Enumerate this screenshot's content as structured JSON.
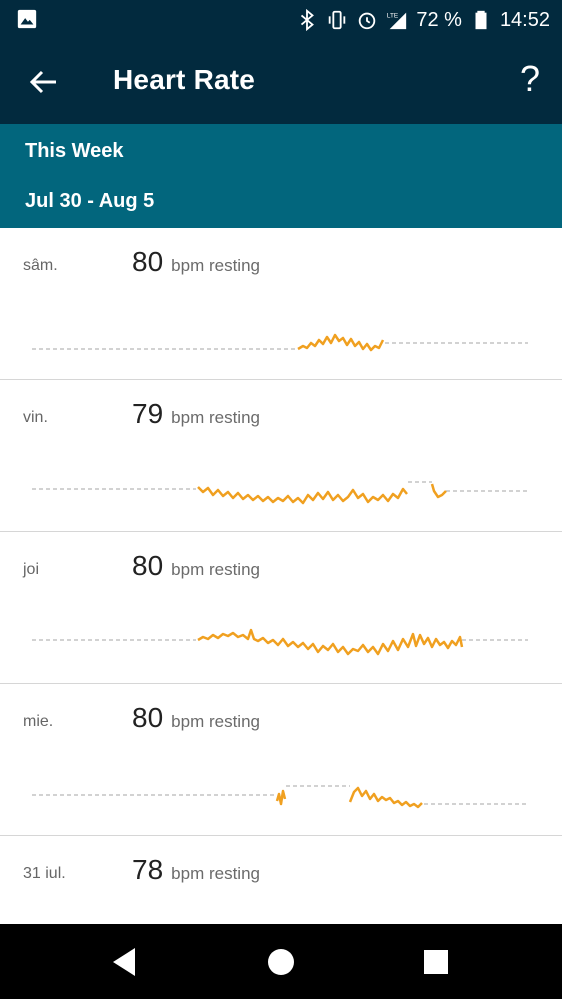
{
  "status_bar": {
    "battery_percent": "72 %",
    "time": "14:52",
    "icons": [
      "image-icon",
      "bluetooth-icon",
      "vibrate-icon",
      "alarm-icon",
      "lte-signal-icon",
      "battery-icon"
    ]
  },
  "app_bar": {
    "title": "Heart Rate",
    "back_icon": "arrow-left-icon",
    "help_label": "?"
  },
  "subheader": {
    "week_label": "This Week",
    "date_range": "Jul 30 - Aug 5"
  },
  "days": [
    {
      "day": "sâm.",
      "bpm": "80",
      "unit": "bpm resting"
    },
    {
      "day": "vin.",
      "bpm": "79",
      "unit": "bpm resting"
    },
    {
      "day": "joi",
      "bpm": "80",
      "unit": "bpm resting"
    },
    {
      "day": "mie.",
      "bpm": "80",
      "unit": "bpm resting"
    },
    {
      "day": "31 iul.",
      "bpm": "78",
      "unit": "bpm resting"
    }
  ],
  "colors": {
    "header": "#022a3e",
    "subheader": "#02667d",
    "trace": "#f0a020",
    "baseline": "#b8b8b8"
  },
  "nav_bar": {
    "icons": [
      "back-triangle-icon",
      "home-circle-icon",
      "recents-square-icon"
    ]
  }
}
